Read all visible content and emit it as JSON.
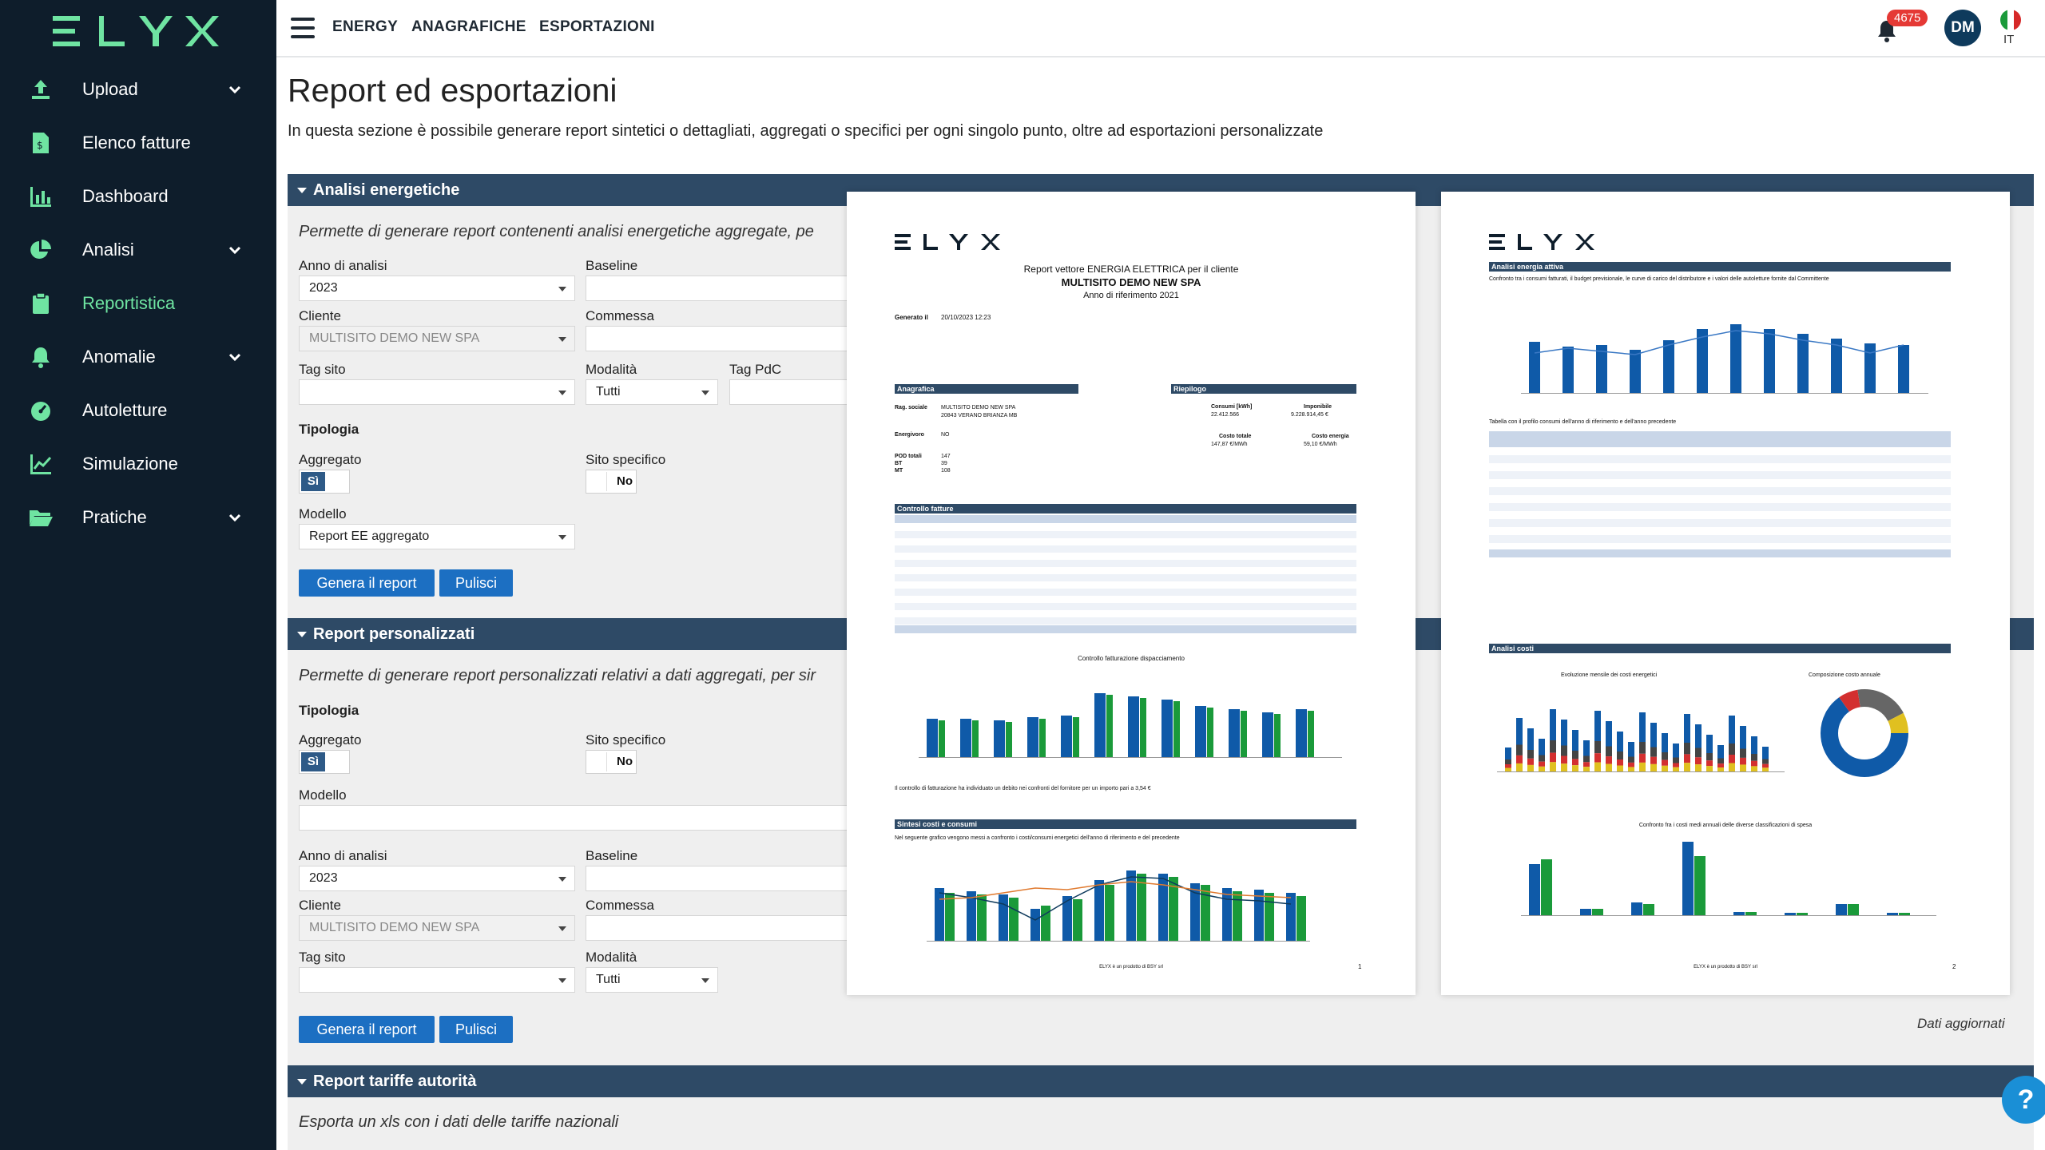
{
  "app": {
    "logo_text": "ELYX"
  },
  "sidebar": {
    "items": [
      {
        "label": "Upload",
        "icon": "upload-icon",
        "chevron": true
      },
      {
        "label": "Elenco fatture",
        "icon": "invoice-list-icon",
        "chevron": false
      },
      {
        "label": "Dashboard",
        "icon": "bar-chart-icon",
        "chevron": false
      },
      {
        "label": "Analisi",
        "icon": "pie-chart-icon",
        "chevron": true
      },
      {
        "label": "Reportistica",
        "icon": "clipboard-icon",
        "chevron": false,
        "active": true
      },
      {
        "label": "Anomalie",
        "icon": "bell-icon",
        "chevron": true
      },
      {
        "label": "Autoletture",
        "icon": "gauge-icon",
        "chevron": false
      },
      {
        "label": "Simulazione",
        "icon": "line-chart-icon",
        "chevron": false
      },
      {
        "label": "Pratiche",
        "icon": "folder-open-icon",
        "chevron": true
      }
    ]
  },
  "topbar": {
    "nav": [
      "ENERGY",
      "ANAGRAFICHE",
      "ESPORTAZIONI"
    ],
    "notifications": "4675",
    "avatar": "DM",
    "lang": "IT"
  },
  "page": {
    "title": "Report ed esportazioni",
    "description": "In questa sezione è possibile generare report sintetici o dettagliati, aggregati o specifici per ogni singolo punto, oltre ad esportazioni personalizzate"
  },
  "analisi": {
    "title": "Analisi energetiche",
    "description": "Permette di generare report contenenti analisi energetiche aggregate, pe",
    "anno_label": "Anno di analisi",
    "anno_value": "2023",
    "baseline_label": "Baseline",
    "cliente_label": "Cliente",
    "cliente_value": "MULTISITO DEMO NEW SPA",
    "commessa_label": "Commessa",
    "tag_sito_label": "Tag sito",
    "modalita_label": "Modalità",
    "modalita_value": "Tutti",
    "tag_pdc_label": "Tag PdC",
    "tipologia_label": "Tipologia",
    "aggregato_label": "Aggregato",
    "aggregato_value": "Sì",
    "sito_label": "Sito specifico",
    "sito_value": "No",
    "modello_label": "Modello",
    "modello_value": "Report EE aggregato",
    "genera": "Genera il report",
    "pulisci": "Pulisci"
  },
  "personalizzati": {
    "title": "Report personalizzati",
    "description": "Permette di generare report personalizzati relativi a dati aggregati, per sir",
    "tipologia_label": "Tipologia",
    "aggregato_label": "Aggregato",
    "aggregato_value": "Sì",
    "sito_label": "Sito specifico",
    "sito_value": "No",
    "modello_label": "Modello",
    "anno_label": "Anno di analisi",
    "anno_value": "2023",
    "baseline_label": "Baseline",
    "cliente_label": "Cliente",
    "cliente_value": "MULTISITO DEMO NEW SPA",
    "commessa_label": "Commessa",
    "tag_sito_label": "Tag sito",
    "modalita_label": "Modalità",
    "modalita_value": "Tutti",
    "genera": "Genera il report",
    "pulisci": "Pulisci"
  },
  "tariffe": {
    "title": "Report tariffe autorità",
    "description": "Esporta un xls con i dati delle tariffe nazionali"
  },
  "updated": "Dati aggiornati",
  "preview1": {
    "logo": "ELYX",
    "line1": "Report vettore ENERGIA ELETTRICA per il cliente",
    "line2": "MULTISITO DEMO NEW SPA",
    "line3": "Anno di riferimento 2021",
    "generated_label": "Generato il",
    "generated": "20/10/2023 12:23",
    "sec_anagrafica": "Anagrafica",
    "sec_riepilogo": "Riepilogo",
    "sec_controllo": "Controllo fatture",
    "sec_sintesi": "Sintesi costi e consumi",
    "ragione_label": "Rag. sociale",
    "ragione": "MULTISITO DEMO NEW SPA",
    "address": "20843 VERANO BRIANZA MB",
    "energivoro_label": "Energivoro",
    "energivoro": "NO",
    "pod_label": "POD totali",
    "pod": "147",
    "bt_label": "BT",
    "bt": "39",
    "mt_label": "MT",
    "mt": "108",
    "consumi_label": "Consumi [kWh]",
    "consumi": "22.412.566",
    "imponibile_label": "Imponibile",
    "imponibile": "9.228.914,45 €",
    "costo_totale_label": "Costo totale",
    "costo_totale": "147,87 €/MWh",
    "costo_energia_label": "Costo energia",
    "costo_energia": "59,10 €/MWh",
    "chart1_title": "Controllo fatturazione dispacciamento",
    "note": "Il controllo di fatturazione ha individuato un debito nei confronti del fornitore per un importo pari a 3,54 €",
    "sintesi_text": "Nel seguente grafico vengono messi a confronto i costi/consumi energetici dell'anno di riferimento e del precedente",
    "footer": "ELYX è un prodotto di BSY srl",
    "page": "1"
  },
  "preview2": {
    "logo": "ELYX",
    "sec_attiva": "Analisi energia attiva",
    "attiva_text": "Confronto tra i consumi fatturati, il budget previsionale, le curve di carico del distributore e i valori delle autoletture fornite dal Committente",
    "table_text": "Tabella con il profilo consumi dell'anno di riferimento e dell'anno precedente",
    "sec_costi": "Analisi costi",
    "chart_a": "Evoluzione mensile dei costi energetici",
    "chart_b": "Composizione costo annuale",
    "chart_c": "Confronto fra i costi medi annuali delle diverse classificazioni di spesa",
    "footer": "ELYX è un prodotto di BSY srl",
    "page": "2"
  },
  "colors": {
    "sidebar": "#0e1d2b",
    "accent": "#6fe4a2",
    "bar": "#2e4a66",
    "button": "#1c6fc2",
    "chart_blue": "#0f5aa8",
    "chart_green": "#1a9a3a"
  }
}
